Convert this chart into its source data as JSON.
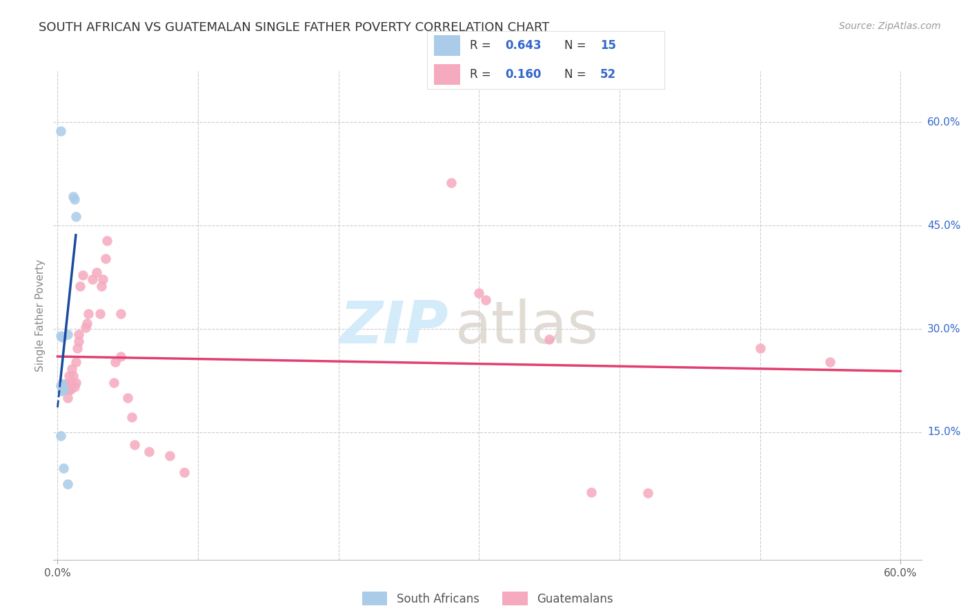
{
  "title": "SOUTH AFRICAN VS GUATEMALAN SINGLE FATHER POVERTY CORRELATION CHART",
  "source": "Source: ZipAtlas.com",
  "ylabel": "Single Father Poverty",
  "xlim": [
    -0.003,
    0.615
  ],
  "ylim": [
    -0.035,
    0.675
  ],
  "xtick_positions": [
    0.0,
    0.6
  ],
  "xtick_labels": [
    "0.0%",
    "60.0%"
  ],
  "ytick_positions": [
    0.15,
    0.3,
    0.45,
    0.6
  ],
  "ytick_labels": [
    "15.0%",
    "30.0%",
    "45.0%",
    "60.0%"
  ],
  "grid_yticks": [
    0.15,
    0.3,
    0.45,
    0.6
  ],
  "grid_xticks": [
    0.0,
    0.1,
    0.2,
    0.3,
    0.4,
    0.5,
    0.6
  ],
  "sa_color": "#aacce8",
  "gt_color": "#f5aabf",
  "sa_line_color": "#1a4a9e",
  "gt_line_color": "#e04070",
  "sa_points_x": [
    0.002,
    0.011,
    0.012,
    0.013,
    0.007,
    0.002,
    0.003,
    0.002,
    0.003,
    0.003,
    0.004,
    0.003,
    0.002,
    0.004,
    0.007
  ],
  "sa_points_y": [
    0.587,
    0.492,
    0.488,
    0.463,
    0.292,
    0.29,
    0.288,
    0.218,
    0.216,
    0.22,
    0.212,
    0.21,
    0.145,
    0.098,
    0.075
  ],
  "gt_points_x": [
    0.004,
    0.005,
    0.005,
    0.005,
    0.005,
    0.006,
    0.006,
    0.007,
    0.006,
    0.008,
    0.008,
    0.008,
    0.009,
    0.01,
    0.011,
    0.01,
    0.012,
    0.013,
    0.013,
    0.014,
    0.015,
    0.015,
    0.016,
    0.018,
    0.02,
    0.021,
    0.022,
    0.025,
    0.028,
    0.03,
    0.031,
    0.032,
    0.034,
    0.035,
    0.04,
    0.041,
    0.045,
    0.045,
    0.05,
    0.053,
    0.055,
    0.065,
    0.08,
    0.09,
    0.28,
    0.3,
    0.305,
    0.35,
    0.42,
    0.5,
    0.55,
    0.38
  ],
  "gt_points_y": [
    0.212,
    0.215,
    0.216,
    0.218,
    0.22,
    0.212,
    0.22,
    0.2,
    0.215,
    0.212,
    0.216,
    0.232,
    0.212,
    0.222,
    0.232,
    0.242,
    0.216,
    0.222,
    0.252,
    0.272,
    0.282,
    0.292,
    0.362,
    0.378,
    0.302,
    0.308,
    0.322,
    0.372,
    0.382,
    0.322,
    0.362,
    0.372,
    0.402,
    0.428,
    0.222,
    0.252,
    0.26,
    0.322,
    0.2,
    0.172,
    0.132,
    0.122,
    0.116,
    0.092,
    0.512,
    0.352,
    0.342,
    0.285,
    0.062,
    0.272,
    0.252,
    0.063
  ],
  "legend_r_sa": "0.643",
  "legend_n_sa": "15",
  "legend_r_gt": "0.160",
  "legend_n_gt": "52",
  "legend_text_color": "#333333",
  "legend_value_color": "#3366cc",
  "watermark_zip_color": "#cde8f8",
  "watermark_atlas_color": "#d8d0c8",
  "background_color": "#ffffff",
  "grid_color": "#cccccc",
  "title_fontsize": 13,
  "source_fontsize": 10,
  "axis_label_fontsize": 11,
  "tick_label_fontsize": 11
}
